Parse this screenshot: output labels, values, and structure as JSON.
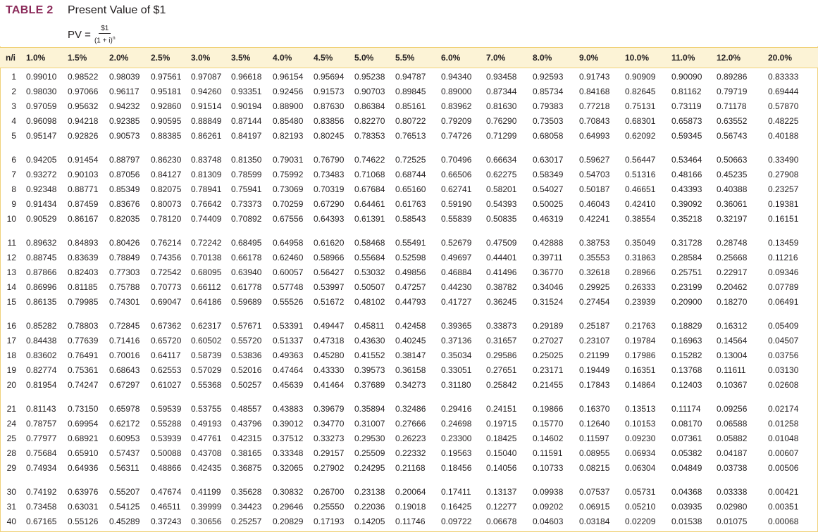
{
  "header": {
    "table_number": "TABLE 2",
    "title": "Present Value of $1",
    "formula_lhs": "PV =",
    "formula_numerator": "$1",
    "formula_denominator": "(1 + i)",
    "formula_exponent": "n"
  },
  "columns": {
    "n_label": "n/i",
    "rates": [
      "1.0%",
      "1.5%",
      "2.0%",
      "2.5%",
      "3.0%",
      "3.5%",
      "4.0%",
      "4.5%",
      "5.0%",
      "5.5%",
      "6.0%",
      "7.0%",
      "8.0%",
      "9.0%",
      "10.0%",
      "11.0%",
      "12.0%",
      "20.0%"
    ]
  },
  "rows": [
    {
      "n": "1",
      "v": [
        "0.99010",
        "0.98522",
        "0.98039",
        "0.97561",
        "0.97087",
        "0.96618",
        "0.96154",
        "0.95694",
        "0.95238",
        "0.94787",
        "0.94340",
        "0.93458",
        "0.92593",
        "0.91743",
        "0.90909",
        "0.90090",
        "0.89286",
        "0.83333"
      ]
    },
    {
      "n": "2",
      "v": [
        "0.98030",
        "0.97066",
        "0.96117",
        "0.95181",
        "0.94260",
        "0.93351",
        "0.92456",
        "0.91573",
        "0.90703",
        "0.89845",
        "0.89000",
        "0.87344",
        "0.85734",
        "0.84168",
        "0.82645",
        "0.81162",
        "0.79719",
        "0.69444"
      ]
    },
    {
      "n": "3",
      "v": [
        "0.97059",
        "0.95632",
        "0.94232",
        "0.92860",
        "0.91514",
        "0.90194",
        "0.88900",
        "0.87630",
        "0.86384",
        "0.85161",
        "0.83962",
        "0.81630",
        "0.79383",
        "0.77218",
        "0.75131",
        "0.73119",
        "0.71178",
        "0.57870"
      ]
    },
    {
      "n": "4",
      "v": [
        "0.96098",
        "0.94218",
        "0.92385",
        "0.90595",
        "0.88849",
        "0.87144",
        "0.85480",
        "0.83856",
        "0.82270",
        "0.80722",
        "0.79209",
        "0.76290",
        "0.73503",
        "0.70843",
        "0.68301",
        "0.65873",
        "0.63552",
        "0.48225"
      ]
    },
    {
      "n": "5",
      "v": [
        "0.95147",
        "0.92826",
        "0.90573",
        "0.88385",
        "0.86261",
        "0.84197",
        "0.82193",
        "0.80245",
        "0.78353",
        "0.76513",
        "0.74726",
        "0.71299",
        "0.68058",
        "0.64993",
        "0.62092",
        "0.59345",
        "0.56743",
        "0.40188"
      ]
    },
    {
      "n": "6",
      "v": [
        "0.94205",
        "0.91454",
        "0.88797",
        "0.86230",
        "0.83748",
        "0.81350",
        "0.79031",
        "0.76790",
        "0.74622",
        "0.72525",
        "0.70496",
        "0.66634",
        "0.63017",
        "0.59627",
        "0.56447",
        "0.53464",
        "0.50663",
        "0.33490"
      ]
    },
    {
      "n": "7",
      "v": [
        "0.93272",
        "0.90103",
        "0.87056",
        "0.84127",
        "0.81309",
        "0.78599",
        "0.75992",
        "0.73483",
        "0.71068",
        "0.68744",
        "0.66506",
        "0.62275",
        "0.58349",
        "0.54703",
        "0.51316",
        "0.48166",
        "0.45235",
        "0.27908"
      ]
    },
    {
      "n": "8",
      "v": [
        "0.92348",
        "0.88771",
        "0.85349",
        "0.82075",
        "0.78941",
        "0.75941",
        "0.73069",
        "0.70319",
        "0.67684",
        "0.65160",
        "0.62741",
        "0.58201",
        "0.54027",
        "0.50187",
        "0.46651",
        "0.43393",
        "0.40388",
        "0.23257"
      ]
    },
    {
      "n": "9",
      "v": [
        "0.91434",
        "0.87459",
        "0.83676",
        "0.80073",
        "0.76642",
        "0.73373",
        "0.70259",
        "0.67290",
        "0.64461",
        "0.61763",
        "0.59190",
        "0.54393",
        "0.50025",
        "0.46043",
        "0.42410",
        "0.39092",
        "0.36061",
        "0.19381"
      ]
    },
    {
      "n": "10",
      "v": [
        "0.90529",
        "0.86167",
        "0.82035",
        "0.78120",
        "0.74409",
        "0.70892",
        "0.67556",
        "0.64393",
        "0.61391",
        "0.58543",
        "0.55839",
        "0.50835",
        "0.46319",
        "0.42241",
        "0.38554",
        "0.35218",
        "0.32197",
        "0.16151"
      ]
    },
    {
      "n": "11",
      "v": [
        "0.89632",
        "0.84893",
        "0.80426",
        "0.76214",
        "0.72242",
        "0.68495",
        "0.64958",
        "0.61620",
        "0.58468",
        "0.55491",
        "0.52679",
        "0.47509",
        "0.42888",
        "0.38753",
        "0.35049",
        "0.31728",
        "0.28748",
        "0.13459"
      ]
    },
    {
      "n": "12",
      "v": [
        "0.88745",
        "0.83639",
        "0.78849",
        "0.74356",
        "0.70138",
        "0.66178",
        "0.62460",
        "0.58966",
        "0.55684",
        "0.52598",
        "0.49697",
        "0.44401",
        "0.39711",
        "0.35553",
        "0.31863",
        "0.28584",
        "0.25668",
        "0.11216"
      ]
    },
    {
      "n": "13",
      "v": [
        "0.87866",
        "0.82403",
        "0.77303",
        "0.72542",
        "0.68095",
        "0.63940",
        "0.60057",
        "0.56427",
        "0.53032",
        "0.49856",
        "0.46884",
        "0.41496",
        "0.36770",
        "0.32618",
        "0.28966",
        "0.25751",
        "0.22917",
        "0.09346"
      ]
    },
    {
      "n": "14",
      "v": [
        "0.86996",
        "0.81185",
        "0.75788",
        "0.70773",
        "0.66112",
        "0.61778",
        "0.57748",
        "0.53997",
        "0.50507",
        "0.47257",
        "0.44230",
        "0.38782",
        "0.34046",
        "0.29925",
        "0.26333",
        "0.23199",
        "0.20462",
        "0.07789"
      ]
    },
    {
      "n": "15",
      "v": [
        "0.86135",
        "0.79985",
        "0.74301",
        "0.69047",
        "0.64186",
        "0.59689",
        "0.55526",
        "0.51672",
        "0.48102",
        "0.44793",
        "0.41727",
        "0.36245",
        "0.31524",
        "0.27454",
        "0.23939",
        "0.20900",
        "0.18270",
        "0.06491"
      ]
    },
    {
      "n": "16",
      "v": [
        "0.85282",
        "0.78803",
        "0.72845",
        "0.67362",
        "0.62317",
        "0.57671",
        "0.53391",
        "0.49447",
        "0.45811",
        "0.42458",
        "0.39365",
        "0.33873",
        "0.29189",
        "0.25187",
        "0.21763",
        "0.18829",
        "0.16312",
        "0.05409"
      ]
    },
    {
      "n": "17",
      "v": [
        "0.84438",
        "0.77639",
        "0.71416",
        "0.65720",
        "0.60502",
        "0.55720",
        "0.51337",
        "0.47318",
        "0.43630",
        "0.40245",
        "0.37136",
        "0.31657",
        "0.27027",
        "0.23107",
        "0.19784",
        "0.16963",
        "0.14564",
        "0.04507"
      ]
    },
    {
      "n": "18",
      "v": [
        "0.83602",
        "0.76491",
        "0.70016",
        "0.64117",
        "0.58739",
        "0.53836",
        "0.49363",
        "0.45280",
        "0.41552",
        "0.38147",
        "0.35034",
        "0.29586",
        "0.25025",
        "0.21199",
        "0.17986",
        "0.15282",
        "0.13004",
        "0.03756"
      ]
    },
    {
      "n": "19",
      "v": [
        "0.82774",
        "0.75361",
        "0.68643",
        "0.62553",
        "0.57029",
        "0.52016",
        "0.47464",
        "0.43330",
        "0.39573",
        "0.36158",
        "0.33051",
        "0.27651",
        "0.23171",
        "0.19449",
        "0.16351",
        "0.13768",
        "0.11611",
        "0.03130"
      ]
    },
    {
      "n": "20",
      "v": [
        "0.81954",
        "0.74247",
        "0.67297",
        "0.61027",
        "0.55368",
        "0.50257",
        "0.45639",
        "0.41464",
        "0.37689",
        "0.34273",
        "0.31180",
        "0.25842",
        "0.21455",
        "0.17843",
        "0.14864",
        "0.12403",
        "0.10367",
        "0.02608"
      ]
    },
    {
      "n": "21",
      "v": [
        "0.81143",
        "0.73150",
        "0.65978",
        "0.59539",
        "0.53755",
        "0.48557",
        "0.43883",
        "0.39679",
        "0.35894",
        "0.32486",
        "0.29416",
        "0.24151",
        "0.19866",
        "0.16370",
        "0.13513",
        "0.11174",
        "0.09256",
        "0.02174"
      ]
    },
    {
      "n": "24",
      "v": [
        "0.78757",
        "0.69954",
        "0.62172",
        "0.55288",
        "0.49193",
        "0.43796",
        "0.39012",
        "0.34770",
        "0.31007",
        "0.27666",
        "0.24698",
        "0.19715",
        "0.15770",
        "0.12640",
        "0.10153",
        "0.08170",
        "0.06588",
        "0.01258"
      ]
    },
    {
      "n": "25",
      "v": [
        "0.77977",
        "0.68921",
        "0.60953",
        "0.53939",
        "0.47761",
        "0.42315",
        "0.37512",
        "0.33273",
        "0.29530",
        "0.26223",
        "0.23300",
        "0.18425",
        "0.14602",
        "0.11597",
        "0.09230",
        "0.07361",
        "0.05882",
        "0.01048"
      ]
    },
    {
      "n": "28",
      "v": [
        "0.75684",
        "0.65910",
        "0.57437",
        "0.50088",
        "0.43708",
        "0.38165",
        "0.33348",
        "0.29157",
        "0.25509",
        "0.22332",
        "0.19563",
        "0.15040",
        "0.11591",
        "0.08955",
        "0.06934",
        "0.05382",
        "0.04187",
        "0.00607"
      ]
    },
    {
      "n": "29",
      "v": [
        "0.74934",
        "0.64936",
        "0.56311",
        "0.48866",
        "0.42435",
        "0.36875",
        "0.32065",
        "0.27902",
        "0.24295",
        "0.21168",
        "0.18456",
        "0.14056",
        "0.10733",
        "0.08215",
        "0.06304",
        "0.04849",
        "0.03738",
        "0.00506"
      ]
    },
    {
      "n": "30",
      "v": [
        "0.74192",
        "0.63976",
        "0.55207",
        "0.47674",
        "0.41199",
        "0.35628",
        "0.30832",
        "0.26700",
        "0.23138",
        "0.20064",
        "0.17411",
        "0.13137",
        "0.09938",
        "0.07537",
        "0.05731",
        "0.04368",
        "0.03338",
        "0.00421"
      ]
    },
    {
      "n": "31",
      "v": [
        "0.73458",
        "0.63031",
        "0.54125",
        "0.46511",
        "0.39999",
        "0.34423",
        "0.29646",
        "0.25550",
        "0.22036",
        "0.19018",
        "0.16425",
        "0.12277",
        "0.09202",
        "0.06915",
        "0.05210",
        "0.03935",
        "0.02980",
        "0.00351"
      ]
    },
    {
      "n": "40",
      "v": [
        "0.67165",
        "0.55126",
        "0.45289",
        "0.37243",
        "0.30656",
        "0.25257",
        "0.20829",
        "0.17193",
        "0.14205",
        "0.11746",
        "0.09722",
        "0.06678",
        "0.04603",
        "0.03184",
        "0.02209",
        "0.01538",
        "0.01075",
        "0.00068"
      ]
    }
  ]
}
